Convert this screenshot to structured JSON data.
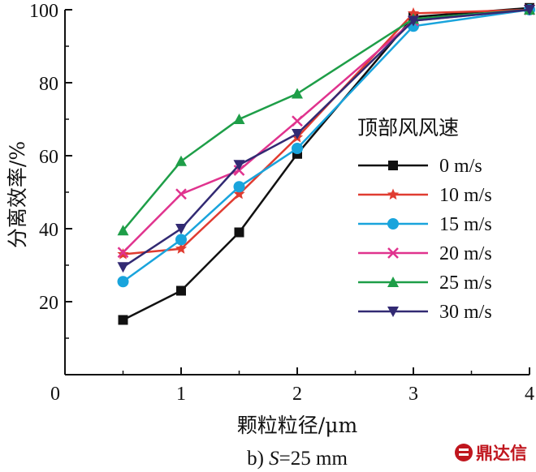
{
  "chart_data": {
    "type": "line",
    "xlabel": "颗粒粒径/μm",
    "ylabel": "分离效率/%",
    "caption_prefix": "b) ",
    "caption_var": "S",
    "caption_rest": "=25 mm",
    "xlim": [
      0,
      4
    ],
    "ylim": [
      0,
      100
    ],
    "xticks": [
      0,
      1,
      2,
      3,
      4
    ],
    "yticks": [
      20,
      40,
      60,
      80,
      100
    ],
    "grid": false,
    "legend_title": "顶部风风速",
    "legend_position": "right",
    "series": [
      {
        "name": "0 m/s",
        "color": "#111111",
        "marker": "square",
        "x": [
          0.5,
          1,
          1.5,
          2,
          3,
          4
        ],
        "y": [
          15,
          23,
          39,
          60.5,
          98,
          100.5
        ]
      },
      {
        "name": "10 m/s",
        "color": "#e03c31",
        "marker": "star",
        "x": [
          0.5,
          1,
          1.5,
          2,
          3,
          4
        ],
        "y": [
          33,
          34.5,
          49.5,
          65,
          99,
          100
        ]
      },
      {
        "name": "15 m/s",
        "color": "#19a4dc",
        "marker": "circle",
        "x": [
          0.5,
          1,
          1.5,
          2,
          3,
          4
        ],
        "y": [
          25.5,
          37,
          51.5,
          62,
          95.5,
          100
        ]
      },
      {
        "name": "20 m/s",
        "color": "#e0338e",
        "marker": "x",
        "x": [
          0.5,
          1,
          1.5,
          2,
          3,
          4
        ],
        "y": [
          33.5,
          49.5,
          56,
          69.5,
          97,
          100
        ]
      },
      {
        "name": "25 m/s",
        "color": "#1e9e48",
        "marker": "triangle-up",
        "x": [
          0.5,
          1,
          1.5,
          2,
          3,
          4
        ],
        "y": [
          39.5,
          58.5,
          70,
          77,
          97.5,
          100
        ]
      },
      {
        "name": "30 m/s",
        "color": "#322a73",
        "marker": "triangle-down",
        "x": [
          0.5,
          1,
          1.5,
          2,
          3,
          4
        ],
        "y": [
          29.5,
          40,
          57.5,
          66,
          97,
          100
        ]
      }
    ]
  },
  "watermark": {
    "text": "鼎达信",
    "color": "#c0161e"
  }
}
